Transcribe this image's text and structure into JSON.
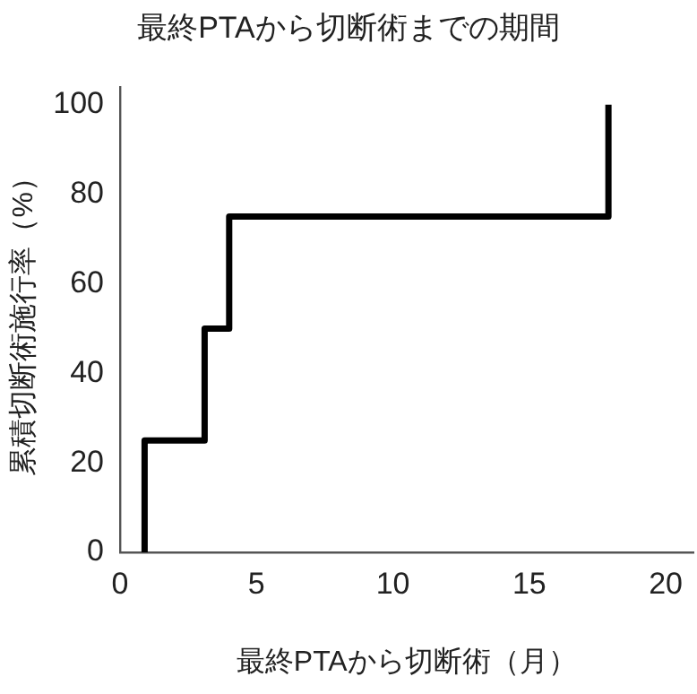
{
  "chart_data": {
    "type": "step",
    "title": "最終PTAから切断術までの期間",
    "xlabel": "最終PTAから切断術（月）",
    "ylabel": "累積切断術施行率（%）",
    "x": [
      0.9,
      0.9,
      3.1,
      4.0,
      17.9
    ],
    "values": [
      0,
      25,
      50,
      75,
      100
    ],
    "color": "#000000",
    "xlim": [
      0,
      21
    ],
    "xticks": [
      0,
      5,
      10,
      15,
      20
    ],
    "ylim": [
      0,
      104
    ],
    "yticks": [
      0,
      20,
      40,
      60,
      80,
      100
    ],
    "grid": false,
    "legend": false,
    "marker": "none",
    "line_style": "solid"
  }
}
